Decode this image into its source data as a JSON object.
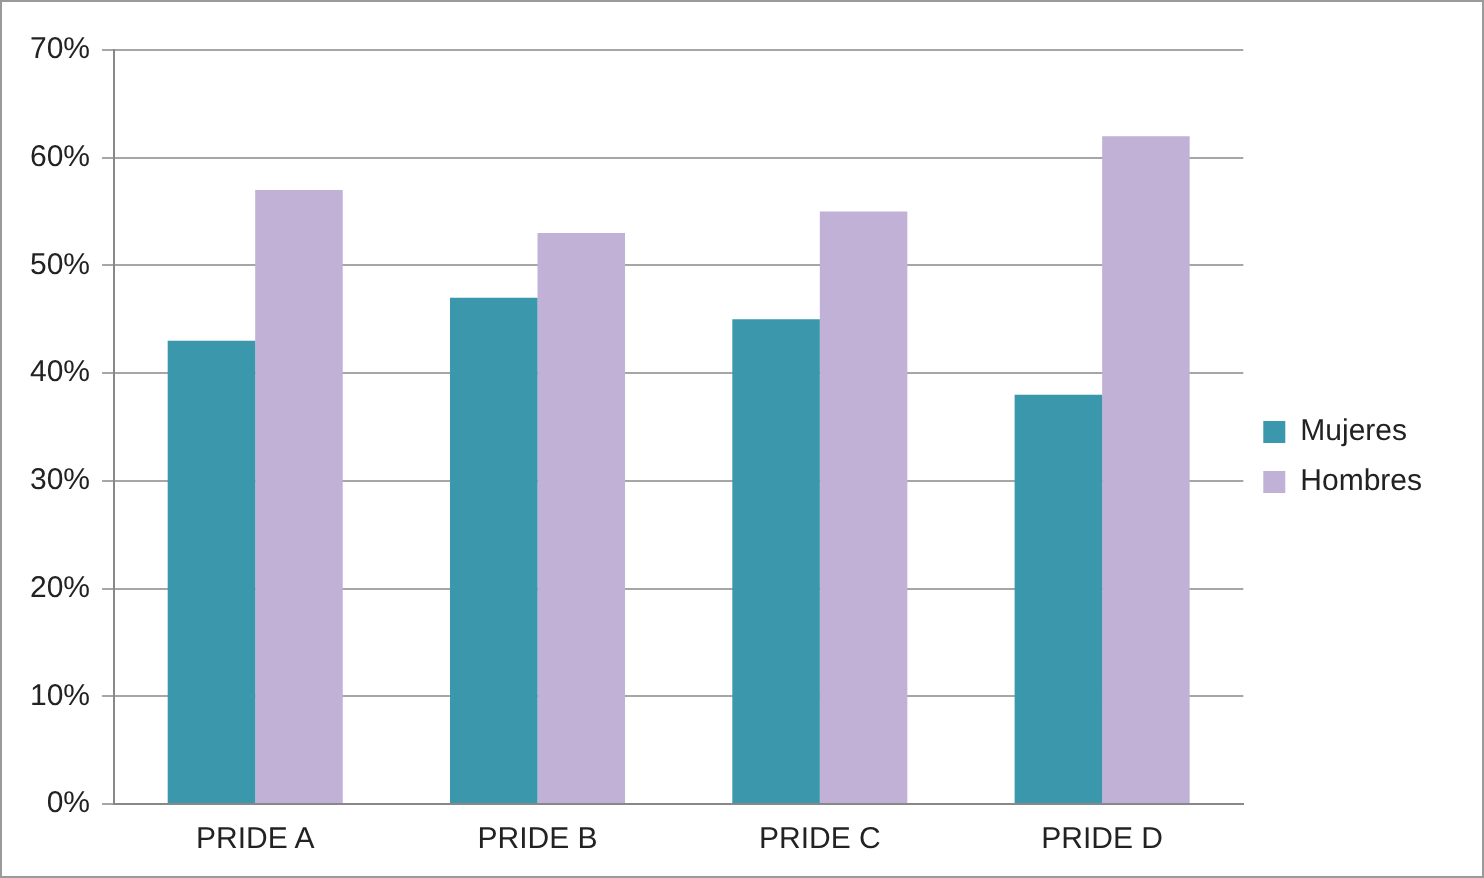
{
  "chart_data": {
    "type": "bar",
    "categories": [
      "PRIDE A",
      "PRIDE B",
      "PRIDE C",
      "PRIDE D"
    ],
    "series": [
      {
        "name": "Mujeres",
        "color": "#3b97ab",
        "values": [
          43,
          47,
          45,
          38
        ]
      },
      {
        "name": "Hombres",
        "color": "#c1b1d6",
        "values": [
          57,
          53,
          55,
          62
        ]
      }
    ],
    "ylim": [
      0,
      70
    ],
    "yticks": [
      {
        "value": 0,
        "label": "0%"
      },
      {
        "value": 10,
        "label": "10%"
      },
      {
        "value": 20,
        "label": "20%"
      },
      {
        "value": 30,
        "label": "30%"
      },
      {
        "value": 40,
        "label": "40%"
      },
      {
        "value": 50,
        "label": "50%"
      },
      {
        "value": 60,
        "label": "60%"
      },
      {
        "value": 70,
        "label": "70%"
      }
    ],
    "grid": "y",
    "legend": "right"
  }
}
